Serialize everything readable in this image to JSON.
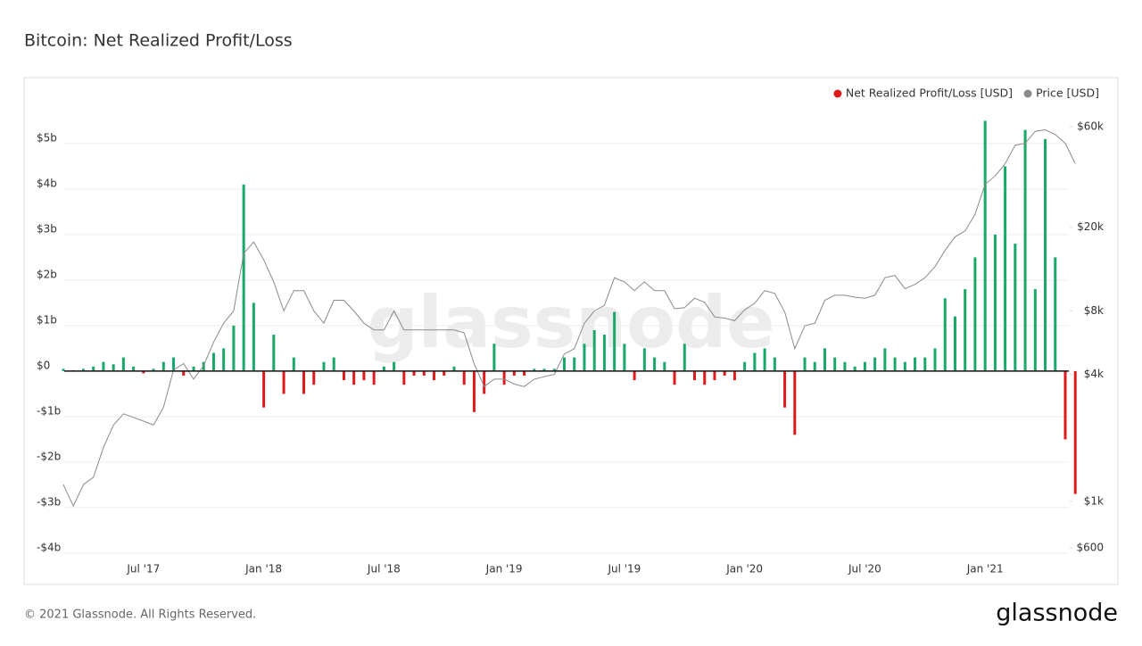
{
  "chart_data": {
    "type": "bar_line",
    "title": "Bitcoin: Net Realized Profit/Loss",
    "watermark": "glassnode",
    "footer": "© 2021 Glassnode. All Rights Reserved.",
    "brand": "glassnode",
    "categories": [
      null,
      null,
      null,
      null,
      null,
      null,
      null,
      null,
      "Jul '17",
      null,
      null,
      null,
      null,
      null,
      null,
      null,
      null,
      null,
      null,
      null,
      "Jan '18",
      null,
      null,
      null,
      null,
      null,
      null,
      null,
      null,
      null,
      null,
      null,
      "Jul '18",
      null,
      null,
      null,
      null,
      null,
      null,
      null,
      null,
      null,
      null,
      null,
      "Jan '19",
      null,
      null,
      null,
      null,
      null,
      null,
      null,
      null,
      null,
      null,
      null,
      "Jul '19",
      null,
      null,
      null,
      null,
      null,
      null,
      null,
      null,
      null,
      null,
      null,
      "Jan '20",
      null,
      null,
      null,
      null,
      null,
      null,
      null,
      null,
      null,
      null,
      null,
      "Jul '20",
      null,
      null,
      null,
      null,
      null,
      null,
      null,
      null,
      null,
      null,
      null,
      "Jan '21",
      null,
      null,
      null,
      null,
      null,
      null,
      null,
      null,
      null
    ],
    "series": [
      {
        "name": "Net Realized Profit/Loss [USD]",
        "color": "#e01a1a",
        "positive_color": "#18a867",
        "values": [
          0.05,
          0.02,
          0.05,
          0.1,
          0.2,
          0.15,
          0.3,
          0.1,
          -0.05,
          0.05,
          0.2,
          0.3,
          -0.1,
          0.1,
          0.2,
          0.4,
          0.5,
          1.0,
          4.1,
          1.5,
          -0.8,
          0.8,
          -0.5,
          0.3,
          -0.5,
          -0.3,
          0.2,
          0.3,
          -0.2,
          -0.3,
          -0.2,
          -0.3,
          0.1,
          0.2,
          -0.3,
          -0.1,
          -0.1,
          -0.2,
          -0.1,
          0.1,
          -0.3,
          -0.9,
          -0.5,
          0.6,
          -0.3,
          -0.1,
          -0.1,
          0.05,
          0.05,
          0.05,
          0.3,
          0.3,
          0.6,
          0.9,
          0.8,
          1.3,
          0.6,
          -0.2,
          0.5,
          0.3,
          0.2,
          -0.3,
          0.6,
          -0.2,
          -0.3,
          -0.2,
          -0.1,
          -0.2,
          0.2,
          0.4,
          0.5,
          0.3,
          -0.8,
          -1.4,
          0.3,
          0.2,
          0.5,
          0.3,
          0.2,
          0.1,
          0.2,
          0.3,
          0.5,
          0.3,
          0.2,
          0.3,
          0.3,
          0.5,
          1.6,
          1.2,
          1.8,
          2.5,
          5.5,
          3.0,
          4.5,
          2.8,
          5.3,
          1.8,
          5.1,
          2.5,
          -1.5,
          -2.7
        ]
      },
      {
        "name": "Price [USD]",
        "color": "#8a8a8a",
        "axis": "y2",
        "values": [
          1200,
          950,
          1200,
          1300,
          1800,
          2300,
          2600,
          2500,
          2400,
          2300,
          2800,
          4200,
          4500,
          3800,
          4400,
          5700,
          7000,
          8000,
          15000,
          17000,
          14000,
          11000,
          8000,
          10000,
          10000,
          8000,
          7000,
          9000,
          9000,
          8000,
          7000,
          6500,
          6500,
          8000,
          6500,
          6500,
          6500,
          6500,
          6500,
          6500,
          6300,
          4500,
          3500,
          3800,
          3800,
          3600,
          3500,
          3800,
          3900,
          4000,
          5000,
          5300,
          7000,
          8000,
          8500,
          11500,
          11000,
          10000,
          11000,
          10000,
          10000,
          8200,
          8300,
          9200,
          8800,
          7500,
          7400,
          7200,
          8100,
          8700,
          10000,
          9700,
          7900,
          5300,
          6800,
          7000,
          9000,
          9500,
          9500,
          9300,
          9200,
          9500,
          11500,
          11800,
          10200,
          10700,
          11500,
          13000,
          15500,
          18000,
          19200,
          23000,
          32000,
          35000,
          40000,
          49000,
          50000,
          57000,
          58000,
          55000,
          50000,
          40000
        ]
      }
    ],
    "ylim": [
      -4.1,
      5.9
    ],
    "yticks": [
      {
        "value": -4,
        "label": "-$4b"
      },
      {
        "value": -3,
        "label": "-$3b"
      },
      {
        "value": -2,
        "label": "-$2b"
      },
      {
        "value": -1,
        "label": "-$1b"
      },
      {
        "value": 0,
        "label": "$0"
      },
      {
        "value": 1,
        "label": "$1b"
      },
      {
        "value": 2,
        "label": "$2b"
      },
      {
        "value": 3,
        "label": "$3b"
      },
      {
        "value": 4,
        "label": "$4b"
      },
      {
        "value": 5,
        "label": "$5b"
      }
    ],
    "y2lim": [
      540,
      78000
    ],
    "y2log": true,
    "y2ticks": [
      {
        "value": 600,
        "label": "$600"
      },
      {
        "value": 1000,
        "label": "$1k"
      },
      {
        "value": 4000,
        "label": "$4k"
      },
      {
        "value": 8000,
        "label": "$8k"
      },
      {
        "value": 20000,
        "label": "$20k"
      },
      {
        "value": 60000,
        "label": "$60k"
      }
    ],
    "grid": true,
    "legend": "top-right"
  }
}
